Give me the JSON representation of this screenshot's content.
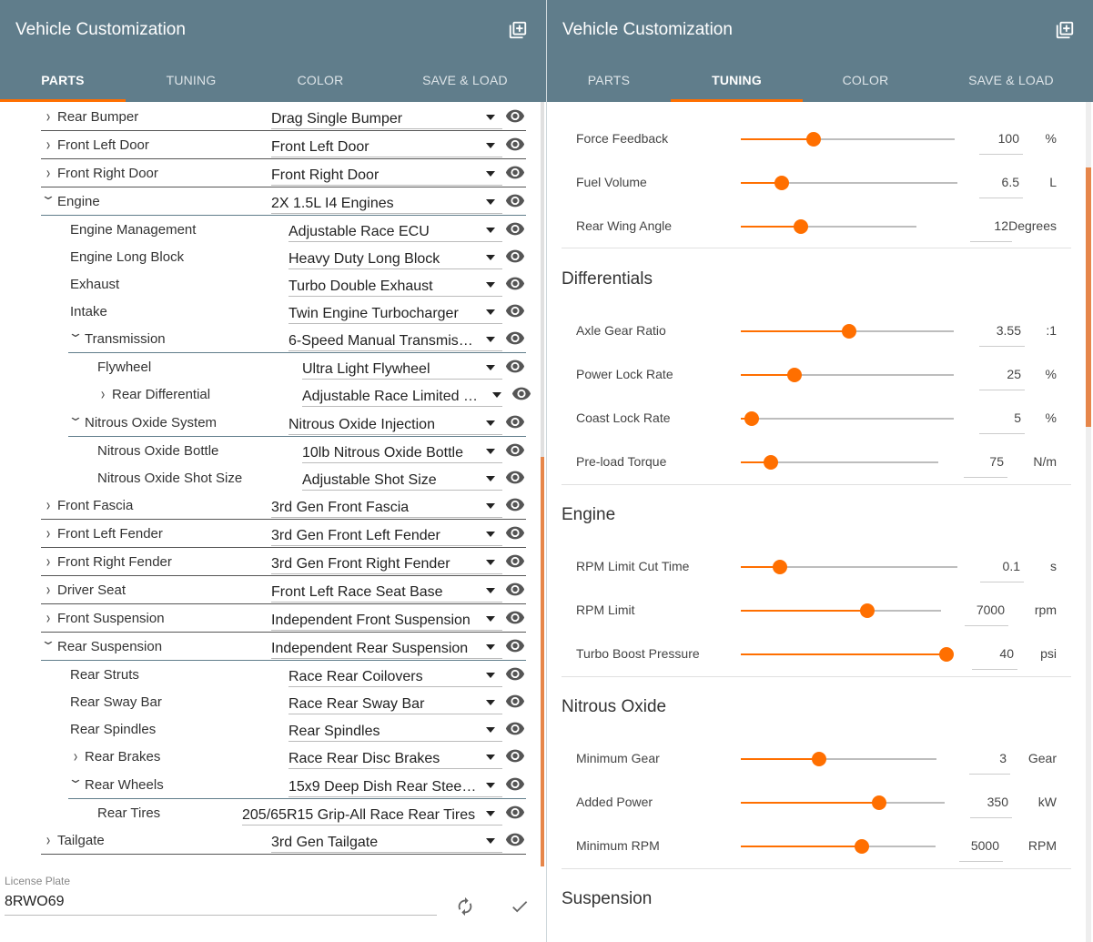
{
  "left": {
    "title": "Vehicle Customization",
    "tabs": [
      "PARTS",
      "TUNING",
      "COLOR",
      "SAVE & LOAD"
    ],
    "active_tab": "PARTS",
    "parts": [
      {
        "label": "Rear Bumper",
        "value": "Drag Single Bumper",
        "chevron": "›"
      },
      {
        "label": "Front Left Door",
        "value": "Front Left Door",
        "chevron": "›"
      },
      {
        "label": "Front Right Door",
        "value": "Front Right Door",
        "chevron": "›"
      },
      {
        "label": "Engine",
        "value": "2X 1.5L I4 Engines",
        "chevron": "⌄"
      },
      {
        "label": "Engine Management",
        "value": "Adjustable Race ECU",
        "chevron": ""
      },
      {
        "label": "Engine Long Block",
        "value": "Heavy Duty Long Block",
        "chevron": ""
      },
      {
        "label": "Exhaust",
        "value": "Turbo Double Exhaust",
        "chevron": ""
      },
      {
        "label": "Intake",
        "value": "Twin Engine Turbocharger",
        "chevron": ""
      },
      {
        "label": "Transmission",
        "value": "6-Speed Manual Transmiss…",
        "chevron": "⌄"
      },
      {
        "label": "Flywheel",
        "value": "Ultra Light Flywheel",
        "chevron": ""
      },
      {
        "label": "Rear Differential",
        "value": "Adjustable Race Limited …",
        "chevron": "›"
      },
      {
        "label": "Nitrous Oxide System",
        "value": "Nitrous Oxide Injection",
        "chevron": "⌄"
      },
      {
        "label": "Nitrous Oxide Bottle",
        "value": "10lb Nitrous Oxide Bottle",
        "chevron": ""
      },
      {
        "label": "Nitrous Oxide Shot Size",
        "value": "Adjustable Shot Size",
        "chevron": ""
      },
      {
        "label": "Front Fascia",
        "value": "3rd Gen Front Fascia",
        "chevron": "›"
      },
      {
        "label": "Front Left Fender",
        "value": "3rd Gen Front Left Fender",
        "chevron": "›"
      },
      {
        "label": "Front Right Fender",
        "value": "3rd Gen Front Right Fender",
        "chevron": "›"
      },
      {
        "label": "Driver Seat",
        "value": "Front Left Race Seat Base",
        "chevron": "›"
      },
      {
        "label": "Front Suspension",
        "value": "Independent Front Suspension",
        "chevron": "›"
      },
      {
        "label": "Rear Suspension",
        "value": "Independent Rear Suspension",
        "chevron": "⌄"
      },
      {
        "label": "Rear Struts",
        "value": "Race Rear Coilovers",
        "chevron": ""
      },
      {
        "label": "Rear Sway Bar",
        "value": "Race Rear Sway Bar",
        "chevron": ""
      },
      {
        "label": "Rear Spindles",
        "value": "Rear Spindles",
        "chevron": ""
      },
      {
        "label": "Rear Brakes",
        "value": "Race Rear Disc Brakes",
        "chevron": "›"
      },
      {
        "label": "Rear Wheels",
        "value": "15x9 Deep Dish Rear Steel …",
        "chevron": "⌄"
      },
      {
        "label": "Rear Tires",
        "value": "205/65R15 Grip-All Race Rear Tires",
        "chevron": ""
      },
      {
        "label": "Tailgate",
        "value": "3rd Gen Tailgate",
        "chevron": "›"
      }
    ],
    "license": {
      "label": "License Plate",
      "value": "8RWO69"
    }
  },
  "right": {
    "title": "Vehicle Customization",
    "tabs": [
      "PARTS",
      "TUNING",
      "COLOR",
      "SAVE & LOAD"
    ],
    "active_tab": "TUNING",
    "sections": [
      {
        "name": "",
        "items": [
          {
            "label": "Force Feedback",
            "value": "100",
            "unit": "%",
            "level": 0.34
          },
          {
            "label": "Fuel Volume",
            "value": "6.5",
            "unit": "L",
            "level": 0.19
          },
          {
            "label": "Rear Wing Angle",
            "value": "12",
            "unit": "Degrees",
            "level": 0.34
          }
        ]
      },
      {
        "name": "Differentials",
        "items": [
          {
            "label": "Axle Gear Ratio",
            "value": "3.55",
            "unit": ":1",
            "level": 0.51
          },
          {
            "label": "Power Lock Rate",
            "value": "25",
            "unit": "%",
            "level": 0.25
          },
          {
            "label": "Coast Lock Rate",
            "value": "5",
            "unit": "%",
            "level": 0.05
          },
          {
            "label": "Pre-load Torque",
            "value": "75",
            "unit": "N/m",
            "level": 0.15
          }
        ]
      },
      {
        "name": "Engine",
        "items": [
          {
            "label": "RPM Limit Cut Time",
            "value": "0.1",
            "unit": "s",
            "level": 0.18
          },
          {
            "label": "RPM Limit",
            "value": "7000",
            "unit": "rpm",
            "level": 0.63
          },
          {
            "label": "Turbo Boost Pressure",
            "value": "40",
            "unit": "psi",
            "level": 1.0
          }
        ]
      },
      {
        "name": "Nitrous Oxide",
        "items": [
          {
            "label": "Minimum Gear",
            "value": "3",
            "unit": "Gear",
            "level": 0.4
          },
          {
            "label": "Added Power",
            "value": "350",
            "unit": "kW",
            "level": 0.68
          },
          {
            "label": "Minimum RPM",
            "value": "5000",
            "unit": "RPM",
            "level": 0.62
          }
        ]
      },
      {
        "name": "Suspension",
        "items": []
      }
    ]
  },
  "colors": {
    "header": "#607d8b",
    "accent": "#ff6f00"
  },
  "icons": {
    "add": "library-add-icon",
    "visibility": "eye-icon",
    "refresh": "refresh-icon",
    "confirm": "check-icon"
  }
}
